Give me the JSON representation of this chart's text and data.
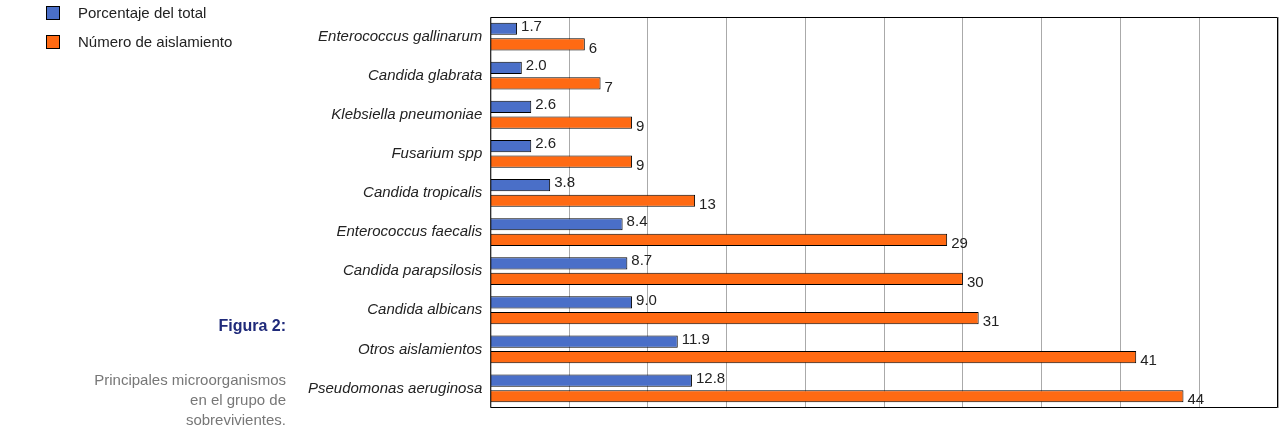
{
  "chart_data": {
    "type": "bar",
    "orientation": "horizontal",
    "title": "Figura 2:",
    "subtitle": "Principales microorganismos en el grupo de sobrevivientes.",
    "categories": [
      "Enterococcus gallinarum",
      "Candida glabrata",
      "Klebsiella pneumoniae",
      "Fusarium spp",
      "Candida tropicalis",
      "Enterococcus faecalis",
      "Candida parapsilosis",
      "Candida albicans",
      "Otros aislamientos",
      "Pseudomonas aeruginosa"
    ],
    "series": [
      {
        "name": "Porcentaje del total",
        "color": "#4a6fc8",
        "values": [
          1.7,
          2.0,
          2.6,
          2.6,
          3.8,
          8.4,
          8.7,
          9.0,
          11.9,
          12.8
        ],
        "value_labels": [
          "1.7",
          "2.0",
          "2.6",
          "2.6",
          "3.8",
          "8.4",
          "8.7",
          "9.0",
          "11.9",
          "12.8"
        ]
      },
      {
        "name": "Número de aislamiento",
        "color": "#ff6a13",
        "values": [
          6,
          7,
          9,
          9,
          13,
          29,
          30,
          31,
          41,
          44
        ]
      }
    ],
    "xlim": [
      0,
      50
    ],
    "xticks": [
      {
        "value": 0,
        "label": null
      },
      {
        "value": 5,
        "label": null
      },
      {
        "value": 10,
        "label": null
      },
      {
        "value": 15,
        "label": null
      },
      {
        "value": 20,
        "label": null
      },
      {
        "value": 25,
        "label": null
      },
      {
        "value": 30,
        "label": null
      },
      {
        "value": 35,
        "label": null
      },
      {
        "value": 40,
        "label": null
      },
      {
        "value": 45,
        "label": null
      },
      {
        "value": 50,
        "label": null
      }
    ],
    "tick_labels": "y",
    "grid": "x",
    "legend": "top left",
    "data_labels": true
  }
}
